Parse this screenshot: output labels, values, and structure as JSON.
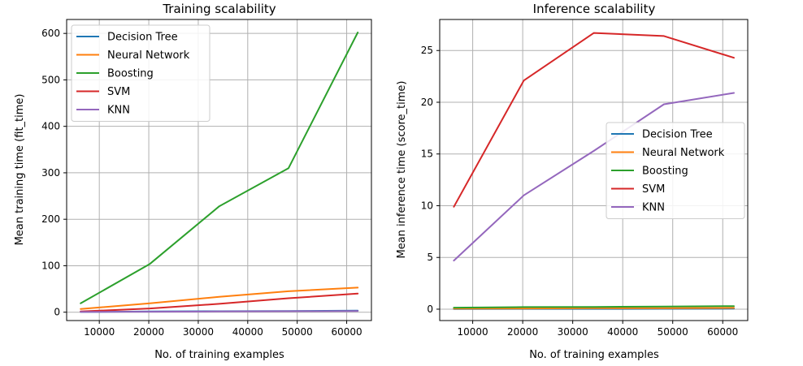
{
  "chart_data": [
    {
      "type": "line",
      "title": "Training scalability",
      "xlabel": "No. of training examples",
      "ylabel": "Mean training time (fit_time)",
      "x": [
        6224,
        20228,
        34233,
        48237,
        62242
      ],
      "xlim": [
        3400,
        65000
      ],
      "ylim": [
        -18,
        630
      ],
      "xticks": [
        10000,
        20000,
        30000,
        40000,
        50000,
        60000
      ],
      "yticks": [
        0,
        100,
        200,
        300,
        400,
        500,
        600
      ],
      "grid": true,
      "legend_position": "top-left",
      "series": [
        {
          "name": "Decision Tree",
          "color": "#1f77b4",
          "values": [
            0.5,
            1.5,
            2.0,
            2.5,
            3.5
          ]
        },
        {
          "name": "Neural Network",
          "color": "#ff7f0e",
          "values": [
            7,
            19,
            33,
            45,
            53
          ]
        },
        {
          "name": "Boosting",
          "color": "#2ca02c",
          "values": [
            19,
            104,
            228,
            310,
            602
          ]
        },
        {
          "name": "SVM",
          "color": "#d62728",
          "values": [
            1.5,
            8,
            18,
            30,
            40
          ]
        },
        {
          "name": "KNN",
          "color": "#9467bd",
          "values": [
            0.5,
            1,
            1.5,
            2,
            2.5
          ]
        }
      ]
    },
    {
      "type": "line",
      "title": "Inference scalability",
      "xlabel": "No. of training examples",
      "ylabel": "Mean inference time (score_time)",
      "x": [
        6224,
        20228,
        34233,
        48237,
        62242
      ],
      "xlim": [
        3400,
        65000
      ],
      "ylim": [
        -1.1,
        28
      ],
      "xticks": [
        10000,
        20000,
        30000,
        40000,
        50000,
        60000
      ],
      "yticks": [
        0,
        5,
        10,
        15,
        20,
        25
      ],
      "grid": true,
      "legend_position": "center-right",
      "series": [
        {
          "name": "Decision Tree",
          "color": "#1f77b4",
          "values": [
            0.02,
            0.03,
            0.03,
            0.04,
            0.05
          ]
        },
        {
          "name": "Neural Network",
          "color": "#ff7f0e",
          "values": [
            0.05,
            0.07,
            0.09,
            0.1,
            0.12
          ]
        },
        {
          "name": "Boosting",
          "color": "#2ca02c",
          "values": [
            0.15,
            0.2,
            0.22,
            0.25,
            0.3
          ]
        },
        {
          "name": "SVM",
          "color": "#d62728",
          "values": [
            9.9,
            22.1,
            26.7,
            26.4,
            24.3
          ]
        },
        {
          "name": "KNN",
          "color": "#9467bd",
          "values": [
            4.7,
            11.0,
            15.3,
            19.8,
            20.9
          ]
        }
      ]
    }
  ]
}
